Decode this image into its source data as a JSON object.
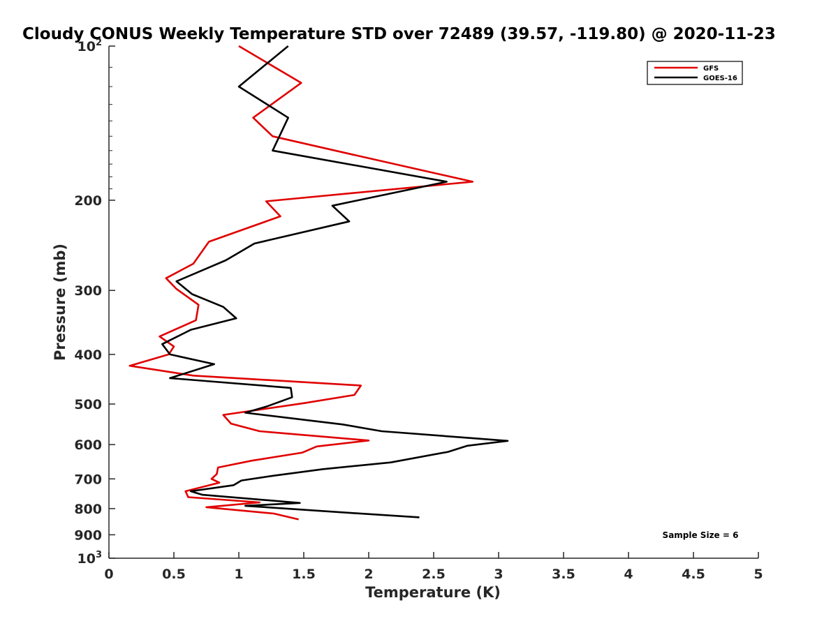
{
  "chart_data": {
    "type": "line",
    "title": "Cloudy CONUS Weekly Temperature STD over 72489 (39.57, -119.80) @ 2020-11-23",
    "xlabel": "Temperature (K)",
    "ylabel": "Pressure (mb)",
    "xlim": [
      0,
      5
    ],
    "ylim": [
      100,
      1000
    ],
    "y_scale": "log",
    "y_reversed": true,
    "x_ticks": [
      "0",
      "0.5",
      "1",
      "1.5",
      "2",
      "2.5",
      "3",
      "3.5",
      "4",
      "4.5",
      "5"
    ],
    "y_ticks": [
      {
        "value": 100,
        "label": "10",
        "sup": "2"
      },
      {
        "value": 200,
        "label": "200",
        "sup": ""
      },
      {
        "value": 300,
        "label": "300",
        "sup": ""
      },
      {
        "value": 400,
        "label": "400",
        "sup": ""
      },
      {
        "value": 500,
        "label": "500",
        "sup": ""
      },
      {
        "value": 600,
        "label": "600",
        "sup": ""
      },
      {
        "value": 700,
        "label": "700",
        "sup": ""
      },
      {
        "value": 800,
        "label": "800",
        "sup": ""
      },
      {
        "value": 900,
        "label": "900",
        "sup": ""
      },
      {
        "value": 1000,
        "label": "10",
        "sup": "3"
      }
    ],
    "grid": false,
    "legend": "top-right",
    "annotation": "Sample Size = 6",
    "series": [
      {
        "name": "GFS",
        "color": "#e00000",
        "points": [
          [
            1.0,
            100
          ],
          [
            1.48,
            118
          ],
          [
            1.11,
            138
          ],
          [
            1.26,
            150
          ],
          [
            1.88,
            163
          ],
          [
            2.8,
            184
          ],
          [
            1.21,
            201
          ],
          [
            1.32,
            215
          ],
          [
            0.77,
            241
          ],
          [
            0.65,
            266
          ],
          [
            0.44,
            284
          ],
          [
            0.52,
            298
          ],
          [
            0.69,
            320
          ],
          [
            0.67,
            343
          ],
          [
            0.39,
            369
          ],
          [
            0.5,
            386
          ],
          [
            0.46,
            400
          ],
          [
            0.16,
            421
          ],
          [
            0.65,
            440
          ],
          [
            1.94,
            460
          ],
          [
            1.89,
            480
          ],
          [
            1.5,
            498
          ],
          [
            0.88,
            525
          ],
          [
            0.94,
            546
          ],
          [
            1.16,
            565
          ],
          [
            2.0,
            589
          ],
          [
            1.6,
            605
          ],
          [
            1.49,
            622
          ],
          [
            1.1,
            645
          ],
          [
            0.84,
            665
          ],
          [
            0.83,
            685
          ],
          [
            0.79,
            700
          ],
          [
            0.85,
            712
          ],
          [
            0.59,
            740
          ],
          [
            0.61,
            760
          ],
          [
            1.16,
            778
          ],
          [
            0.75,
            795
          ],
          [
            1.27,
            818
          ],
          [
            1.46,
            840
          ]
        ]
      },
      {
        "name": "GOES-16",
        "color": "#000000",
        "points": [
          [
            1.38,
            100
          ],
          [
            1.0,
            120
          ],
          [
            1.38,
            138
          ],
          [
            1.26,
            160
          ],
          [
            2.6,
            184
          ],
          [
            1.72,
            205
          ],
          [
            1.85,
            220
          ],
          [
            1.12,
            243
          ],
          [
            0.9,
            262
          ],
          [
            0.52,
            288
          ],
          [
            0.64,
            305
          ],
          [
            0.88,
            323
          ],
          [
            0.98,
            340
          ],
          [
            0.63,
            358
          ],
          [
            0.41,
            382
          ],
          [
            0.47,
            400
          ],
          [
            0.81,
            418
          ],
          [
            0.47,
            445
          ],
          [
            1.4,
            465
          ],
          [
            1.41,
            485
          ],
          [
            1.22,
            505
          ],
          [
            1.05,
            520
          ],
          [
            1.8,
            548
          ],
          [
            2.1,
            565
          ],
          [
            3.07,
            590
          ],
          [
            2.76,
            603
          ],
          [
            2.61,
            620
          ],
          [
            2.17,
            650
          ],
          [
            1.65,
            670
          ],
          [
            1.27,
            690
          ],
          [
            1.02,
            705
          ],
          [
            0.96,
            720
          ],
          [
            0.63,
            740
          ],
          [
            0.72,
            752
          ],
          [
            1.47,
            780
          ],
          [
            1.05,
            790
          ],
          [
            1.87,
            816
          ],
          [
            2.39,
            832
          ]
        ]
      }
    ]
  }
}
